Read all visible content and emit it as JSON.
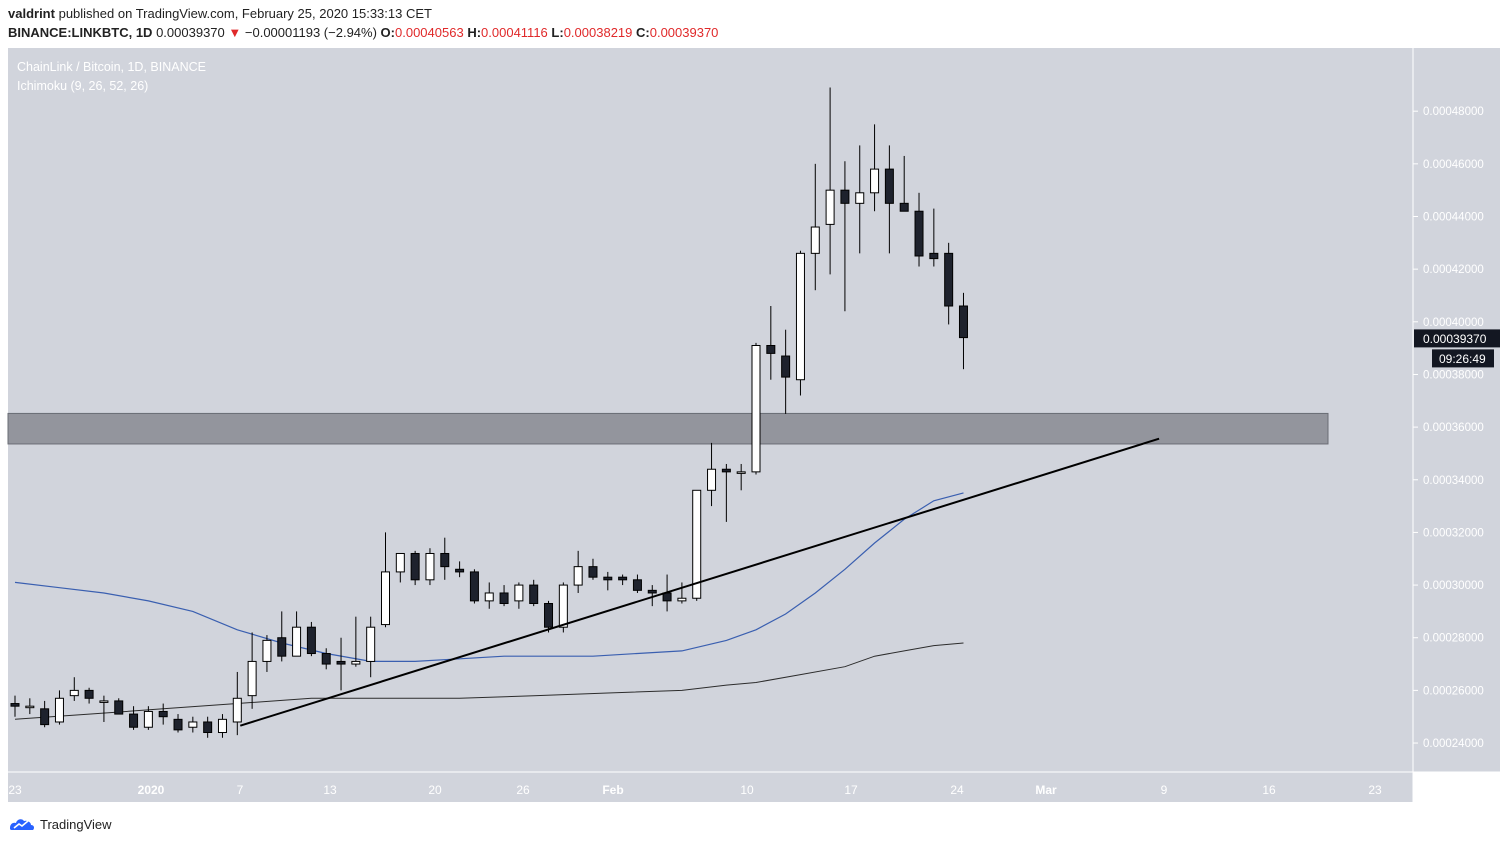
{
  "header": {
    "author": "valdrint",
    "published_text": "published on TradingView.com, February 25, 2020 15:33:13 CET",
    "symbol": "BINANCE:LINKBTC, 1D",
    "last": "0.00039370",
    "change_arrow": "▼",
    "change": "−0.00001193 (−2.94%)",
    "o_label": "O:",
    "o_value": "0.00040563",
    "h_label": "H:",
    "h_value": "0.00041116",
    "l_label": "L:",
    "l_value": "0.00038219",
    "c_label": "C:",
    "c_value": "0.00039370"
  },
  "legend": {
    "title": "ChainLink / Bitcoin, 1D, BINANCE",
    "indicator": "Ichimoku (9, 26, 52, 26)"
  },
  "brand": {
    "name": "TradingView"
  },
  "colors": {
    "background": "#d1d4dc",
    "up_candle": "#ffffff",
    "down_candle": "#1e222d",
    "zone": "#93959d",
    "trendline": "#000000",
    "blue_line": "#3a5fb0",
    "gray_line": "#2c2c2c",
    "price_tag": "#131722"
  },
  "chart_data": {
    "type": "candlestick",
    "title": "ChainLink / Bitcoin, 1D, BINANCE",
    "y_range": [
      0.000229,
      0.000504
    ],
    "y_ticks": [
      "0.00024000",
      "0.00026000",
      "0.00028000",
      "0.00030000",
      "0.00032000",
      "0.00034000",
      "0.00036000",
      "0.00038000",
      "0.00040000",
      "0.00042000",
      "0.00044000",
      "0.00046000",
      "0.00048000"
    ],
    "x_ticks": [
      "23",
      "2020",
      "7",
      "13",
      "20",
      "26",
      "Feb",
      "10",
      "17",
      "24",
      "Mar",
      "9",
      "16",
      "23"
    ],
    "last_price_label": "0.00039370",
    "countdown_label": "09:26:49",
    "candles": [
      {
        "o": 0.000255,
        "h": 0.000258,
        "l": 0.00025,
        "c": 0.000254
      },
      {
        "o": 0.000254,
        "h": 0.000257,
        "l": 0.000251,
        "c": 0.000254
      },
      {
        "o": 0.000253,
        "h": 0.000256,
        "l": 0.000246,
        "c": 0.000247
      },
      {
        "o": 0.000248,
        "h": 0.00026,
        "l": 0.000247,
        "c": 0.000257
      },
      {
        "o": 0.000258,
        "h": 0.000265,
        "l": 0.000256,
        "c": 0.00026
      },
      {
        "o": 0.00026,
        "h": 0.000261,
        "l": 0.000255,
        "c": 0.000257
      },
      {
        "o": 0.000256,
        "h": 0.000258,
        "l": 0.000248,
        "c": 0.000256
      },
      {
        "o": 0.000256,
        "h": 0.000257,
        "l": 0.000251,
        "c": 0.000251
      },
      {
        "o": 0.000251,
        "h": 0.000254,
        "l": 0.000245,
        "c": 0.000246
      },
      {
        "o": 0.000246,
        "h": 0.000254,
        "l": 0.000245,
        "c": 0.000252
      },
      {
        "o": 0.000252,
        "h": 0.000255,
        "l": 0.000247,
        "c": 0.00025
      },
      {
        "o": 0.000249,
        "h": 0.000251,
        "l": 0.000244,
        "c": 0.000245
      },
      {
        "o": 0.000246,
        "h": 0.00025,
        "l": 0.000244,
        "c": 0.000248
      },
      {
        "o": 0.000248,
        "h": 0.00025,
        "l": 0.000242,
        "c": 0.000244
      },
      {
        "o": 0.000244,
        "h": 0.000251,
        "l": 0.000242,
        "c": 0.000249
      },
      {
        "o": 0.000248,
        "h": 0.000267,
        "l": 0.000243,
        "c": 0.000257
      },
      {
        "o": 0.000258,
        "h": 0.000282,
        "l": 0.000253,
        "c": 0.000271
      },
      {
        "o": 0.000271,
        "h": 0.000281,
        "l": 0.000267,
        "c": 0.000279
      },
      {
        "o": 0.00028,
        "h": 0.00029,
        "l": 0.000271,
        "c": 0.000273
      },
      {
        "o": 0.000273,
        "h": 0.00029,
        "l": 0.000273,
        "c": 0.000284
      },
      {
        "o": 0.000284,
        "h": 0.000286,
        "l": 0.000273,
        "c": 0.000274
      },
      {
        "o": 0.000274,
        "h": 0.000276,
        "l": 0.000268,
        "c": 0.00027
      },
      {
        "o": 0.000271,
        "h": 0.00028,
        "l": 0.00026,
        "c": 0.00027
      },
      {
        "o": 0.00027,
        "h": 0.000288,
        "l": 0.000269,
        "c": 0.000271
      },
      {
        "o": 0.000271,
        "h": 0.000288,
        "l": 0.000265,
        "c": 0.000284
      },
      {
        "o": 0.000285,
        "h": 0.00032,
        "l": 0.000284,
        "c": 0.000305
      },
      {
        "o": 0.000305,
        "h": 0.000312,
        "l": 0.000301,
        "c": 0.000312
      },
      {
        "o": 0.000312,
        "h": 0.000313,
        "l": 0.0003,
        "c": 0.000302
      },
      {
        "o": 0.000302,
        "h": 0.000314,
        "l": 0.0003,
        "c": 0.000312
      },
      {
        "o": 0.000312,
        "h": 0.000318,
        "l": 0.000302,
        "c": 0.000307
      },
      {
        "o": 0.000306,
        "h": 0.000309,
        "l": 0.000303,
        "c": 0.000305
      },
      {
        "o": 0.000305,
        "h": 0.000306,
        "l": 0.000293,
        "c": 0.000294
      },
      {
        "o": 0.000294,
        "h": 0.000301,
        "l": 0.000291,
        "c": 0.000297
      },
      {
        "o": 0.000297,
        "h": 0.0003,
        "l": 0.000292,
        "c": 0.000293
      },
      {
        "o": 0.000294,
        "h": 0.000301,
        "l": 0.000291,
        "c": 0.0003
      },
      {
        "o": 0.0003,
        "h": 0.000302,
        "l": 0.000292,
        "c": 0.000293
      },
      {
        "o": 0.000293,
        "h": 0.000294,
        "l": 0.000282,
        "c": 0.000284
      },
      {
        "o": 0.000284,
        "h": 0.000301,
        "l": 0.000282,
        "c": 0.0003
      },
      {
        "o": 0.0003,
        "h": 0.000313,
        "l": 0.000297,
        "c": 0.000307
      },
      {
        "o": 0.000307,
        "h": 0.00031,
        "l": 0.000302,
        "c": 0.000303
      },
      {
        "o": 0.000303,
        "h": 0.000305,
        "l": 0.000298,
        "c": 0.000302
      },
      {
        "o": 0.000303,
        "h": 0.000304,
        "l": 0.0003,
        "c": 0.000302
      },
      {
        "o": 0.000302,
        "h": 0.000304,
        "l": 0.000297,
        "c": 0.000298
      },
      {
        "o": 0.000298,
        "h": 0.0003,
        "l": 0.000292,
        "c": 0.000297
      },
      {
        "o": 0.000297,
        "h": 0.000304,
        "l": 0.00029,
        "c": 0.000294
      },
      {
        "o": 0.000294,
        "h": 0.000301,
        "l": 0.000293,
        "c": 0.000295
      },
      {
        "o": 0.000295,
        "h": 0.000336,
        "l": 0.000294,
        "c": 0.000336
      },
      {
        "o": 0.000336,
        "h": 0.000354,
        "l": 0.00033,
        "c": 0.000344
      },
      {
        "o": 0.000344,
        "h": 0.000346,
        "l": 0.000324,
        "c": 0.000343
      },
      {
        "o": 0.000343,
        "h": 0.000346,
        "l": 0.000336,
        "c": 0.000343
      },
      {
        "o": 0.000343,
        "h": 0.000392,
        "l": 0.000342,
        "c": 0.000391
      },
      {
        "o": 0.000391,
        "h": 0.000406,
        "l": 0.000378,
        "c": 0.000388
      },
      {
        "o": 0.000387,
        "h": 0.000397,
        "l": 0.000365,
        "c": 0.000379
      },
      {
        "o": 0.000378,
        "h": 0.000427,
        "l": 0.000372,
        "c": 0.000426
      },
      {
        "o": 0.000426,
        "h": 0.00046,
        "l": 0.000412,
        "c": 0.000436
      },
      {
        "o": 0.000437,
        "h": 0.000489,
        "l": 0.000418,
        "c": 0.00045
      },
      {
        "o": 0.00045,
        "h": 0.000461,
        "l": 0.000404,
        "c": 0.000445
      },
      {
        "o": 0.000445,
        "h": 0.000467,
        "l": 0.000426,
        "c": 0.000449
      },
      {
        "o": 0.000449,
        "h": 0.000475,
        "l": 0.000442,
        "c": 0.000458
      },
      {
        "o": 0.000458,
        "h": 0.000467,
        "l": 0.000426,
        "c": 0.000445
      },
      {
        "o": 0.000445,
        "h": 0.000463,
        "l": 0.000442,
        "c": 0.000442
      },
      {
        "o": 0.000442,
        "h": 0.000449,
        "l": 0.000421,
        "c": 0.000425
      },
      {
        "o": 0.000426,
        "h": 0.000443,
        "l": 0.000421,
        "c": 0.000424
      },
      {
        "o": 0.000426,
        "h": 0.00043,
        "l": 0.000399,
        "c": 0.000406
      },
      {
        "o": 0.000406,
        "h": 0.000411,
        "l": 0.000382,
        "c": 0.000394
      }
    ],
    "support_zone": {
      "top": 0.0003652,
      "bottom": 0.0003536
    },
    "trendline": [
      {
        "i": 15.2,
        "v": 0.0002466
      },
      {
        "i": 77.2,
        "v": 0.0003556
      }
    ],
    "blue_line": [
      [
        0,
        0.000301
      ],
      [
        3,
        0.000299
      ],
      [
        6,
        0.000297
      ],
      [
        9,
        0.000294
      ],
      [
        12,
        0.00029
      ],
      [
        15,
        0.000283
      ],
      [
        18,
        0.000278
      ],
      [
        21,
        0.000274
      ],
      [
        24,
        0.000271
      ],
      [
        27,
        0.000271
      ],
      [
        30,
        0.000272
      ],
      [
        33,
        0.000273
      ],
      [
        36,
        0.000273
      ],
      [
        39,
        0.000273
      ],
      [
        42,
        0.000274
      ],
      [
        45,
        0.000275
      ],
      [
        48,
        0.000279
      ],
      [
        50,
        0.000283
      ],
      [
        52,
        0.000289
      ],
      [
        54,
        0.000297
      ],
      [
        56,
        0.000306
      ],
      [
        58,
        0.000316
      ],
      [
        60,
        0.000325
      ],
      [
        62,
        0.000332
      ],
      [
        64,
        0.000335
      ]
    ],
    "gray_line": [
      [
        0,
        0.000249
      ],
      [
        5,
        0.000251
      ],
      [
        10,
        0.000253
      ],
      [
        15,
        0.000255
      ],
      [
        20,
        0.000257
      ],
      [
        25,
        0.000257
      ],
      [
        30,
        0.000257
      ],
      [
        35,
        0.000258
      ],
      [
        40,
        0.000259
      ],
      [
        45,
        0.00026
      ],
      [
        48,
        0.000262
      ],
      [
        50,
        0.000263
      ],
      [
        53,
        0.000266
      ],
      [
        56,
        0.000269
      ],
      [
        58,
        0.000273
      ],
      [
        60,
        0.000275
      ],
      [
        62,
        0.000277
      ],
      [
        64,
        0.000278
      ]
    ]
  }
}
